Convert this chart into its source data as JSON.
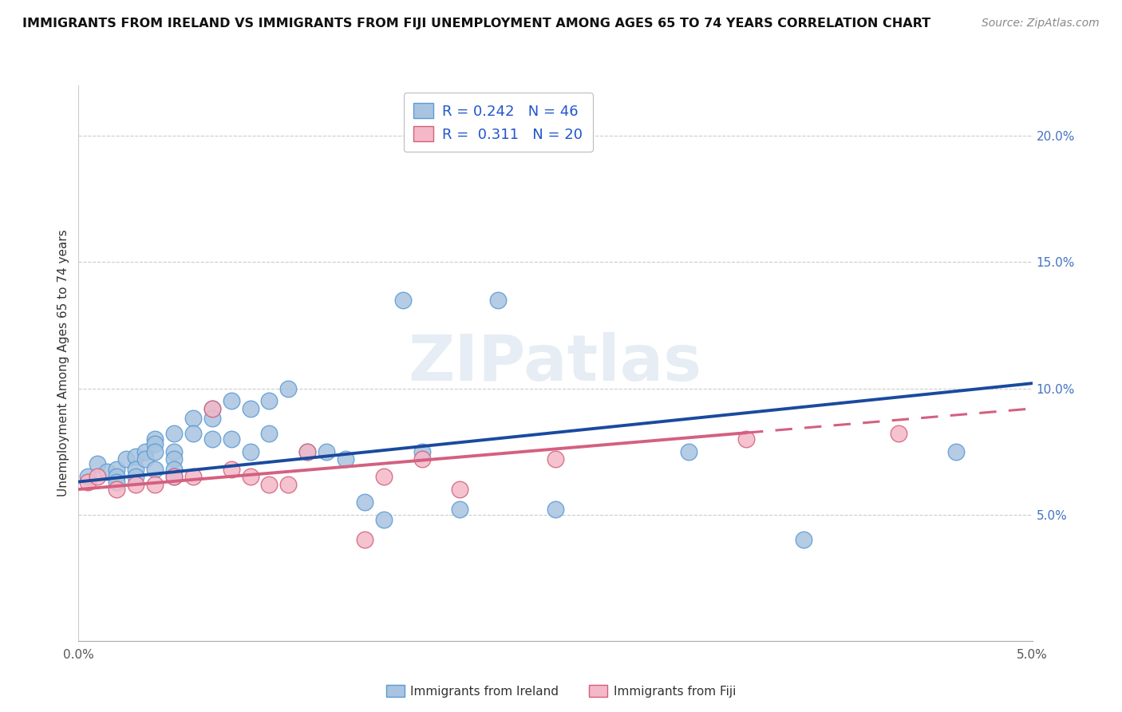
{
  "title": "IMMIGRANTS FROM IRELAND VS IMMIGRANTS FROM FIJI UNEMPLOYMENT AMONG AGES 65 TO 74 YEARS CORRELATION CHART",
  "source": "Source: ZipAtlas.com",
  "ylabel": "Unemployment Among Ages 65 to 74 years",
  "xlim": [
    0.0,
    0.05
  ],
  "ylim": [
    0.0,
    0.22
  ],
  "ireland_R": "0.242",
  "ireland_N": "46",
  "fiji_R": "0.311",
  "fiji_N": "20",
  "ireland_color": "#a8c4e0",
  "ireland_edge": "#5b9bd5",
  "fiji_color": "#f4b8c8",
  "fiji_edge": "#d4607a",
  "ireland_line_color": "#1a4a9e",
  "fiji_line_color": "#d46080",
  "watermark": "ZIPatlas",
  "ireland_x": [
    0.0005,
    0.001,
    0.0015,
    0.002,
    0.002,
    0.002,
    0.0025,
    0.003,
    0.003,
    0.003,
    0.0035,
    0.0035,
    0.004,
    0.004,
    0.004,
    0.004,
    0.005,
    0.005,
    0.005,
    0.005,
    0.005,
    0.006,
    0.006,
    0.007,
    0.007,
    0.007,
    0.008,
    0.008,
    0.009,
    0.009,
    0.01,
    0.01,
    0.011,
    0.012,
    0.013,
    0.014,
    0.015,
    0.016,
    0.017,
    0.018,
    0.02,
    0.022,
    0.025,
    0.032,
    0.038,
    0.046
  ],
  "ireland_y": [
    0.065,
    0.07,
    0.067,
    0.068,
    0.065,
    0.063,
    0.072,
    0.073,
    0.068,
    0.065,
    0.075,
    0.072,
    0.08,
    0.078,
    0.075,
    0.068,
    0.082,
    0.075,
    0.072,
    0.068,
    0.065,
    0.088,
    0.082,
    0.092,
    0.088,
    0.08,
    0.095,
    0.08,
    0.092,
    0.075,
    0.095,
    0.082,
    0.1,
    0.075,
    0.075,
    0.072,
    0.055,
    0.048,
    0.135,
    0.075,
    0.052,
    0.135,
    0.052,
    0.075,
    0.04,
    0.075
  ],
  "fiji_x": [
    0.0005,
    0.001,
    0.002,
    0.003,
    0.004,
    0.005,
    0.006,
    0.007,
    0.008,
    0.009,
    0.01,
    0.011,
    0.012,
    0.015,
    0.016,
    0.018,
    0.02,
    0.025,
    0.035,
    0.043
  ],
  "fiji_y": [
    0.063,
    0.065,
    0.06,
    0.062,
    0.062,
    0.065,
    0.065,
    0.092,
    0.068,
    0.065,
    0.062,
    0.062,
    0.075,
    0.04,
    0.065,
    0.072,
    0.06,
    0.072,
    0.08,
    0.082
  ],
  "ireland_line_x": [
    0.0,
    0.05
  ],
  "ireland_line_y": [
    0.063,
    0.102
  ],
  "fiji_line_x": [
    0.0,
    0.05
  ],
  "fiji_line_y": [
    0.06,
    0.092
  ],
  "fiji_line_solid_end": 0.035,
  "xtick_positions": [
    0.0,
    0.01,
    0.02,
    0.03,
    0.04,
    0.05
  ],
  "xtick_labels": [
    "0.0%",
    "",
    "",
    "",
    "",
    "5.0%"
  ],
  "ytick_positions": [
    0.05,
    0.1,
    0.15,
    0.2
  ],
  "ytick_labels": [
    "5.0%",
    "10.0%",
    "15.0%",
    "20.0%"
  ]
}
